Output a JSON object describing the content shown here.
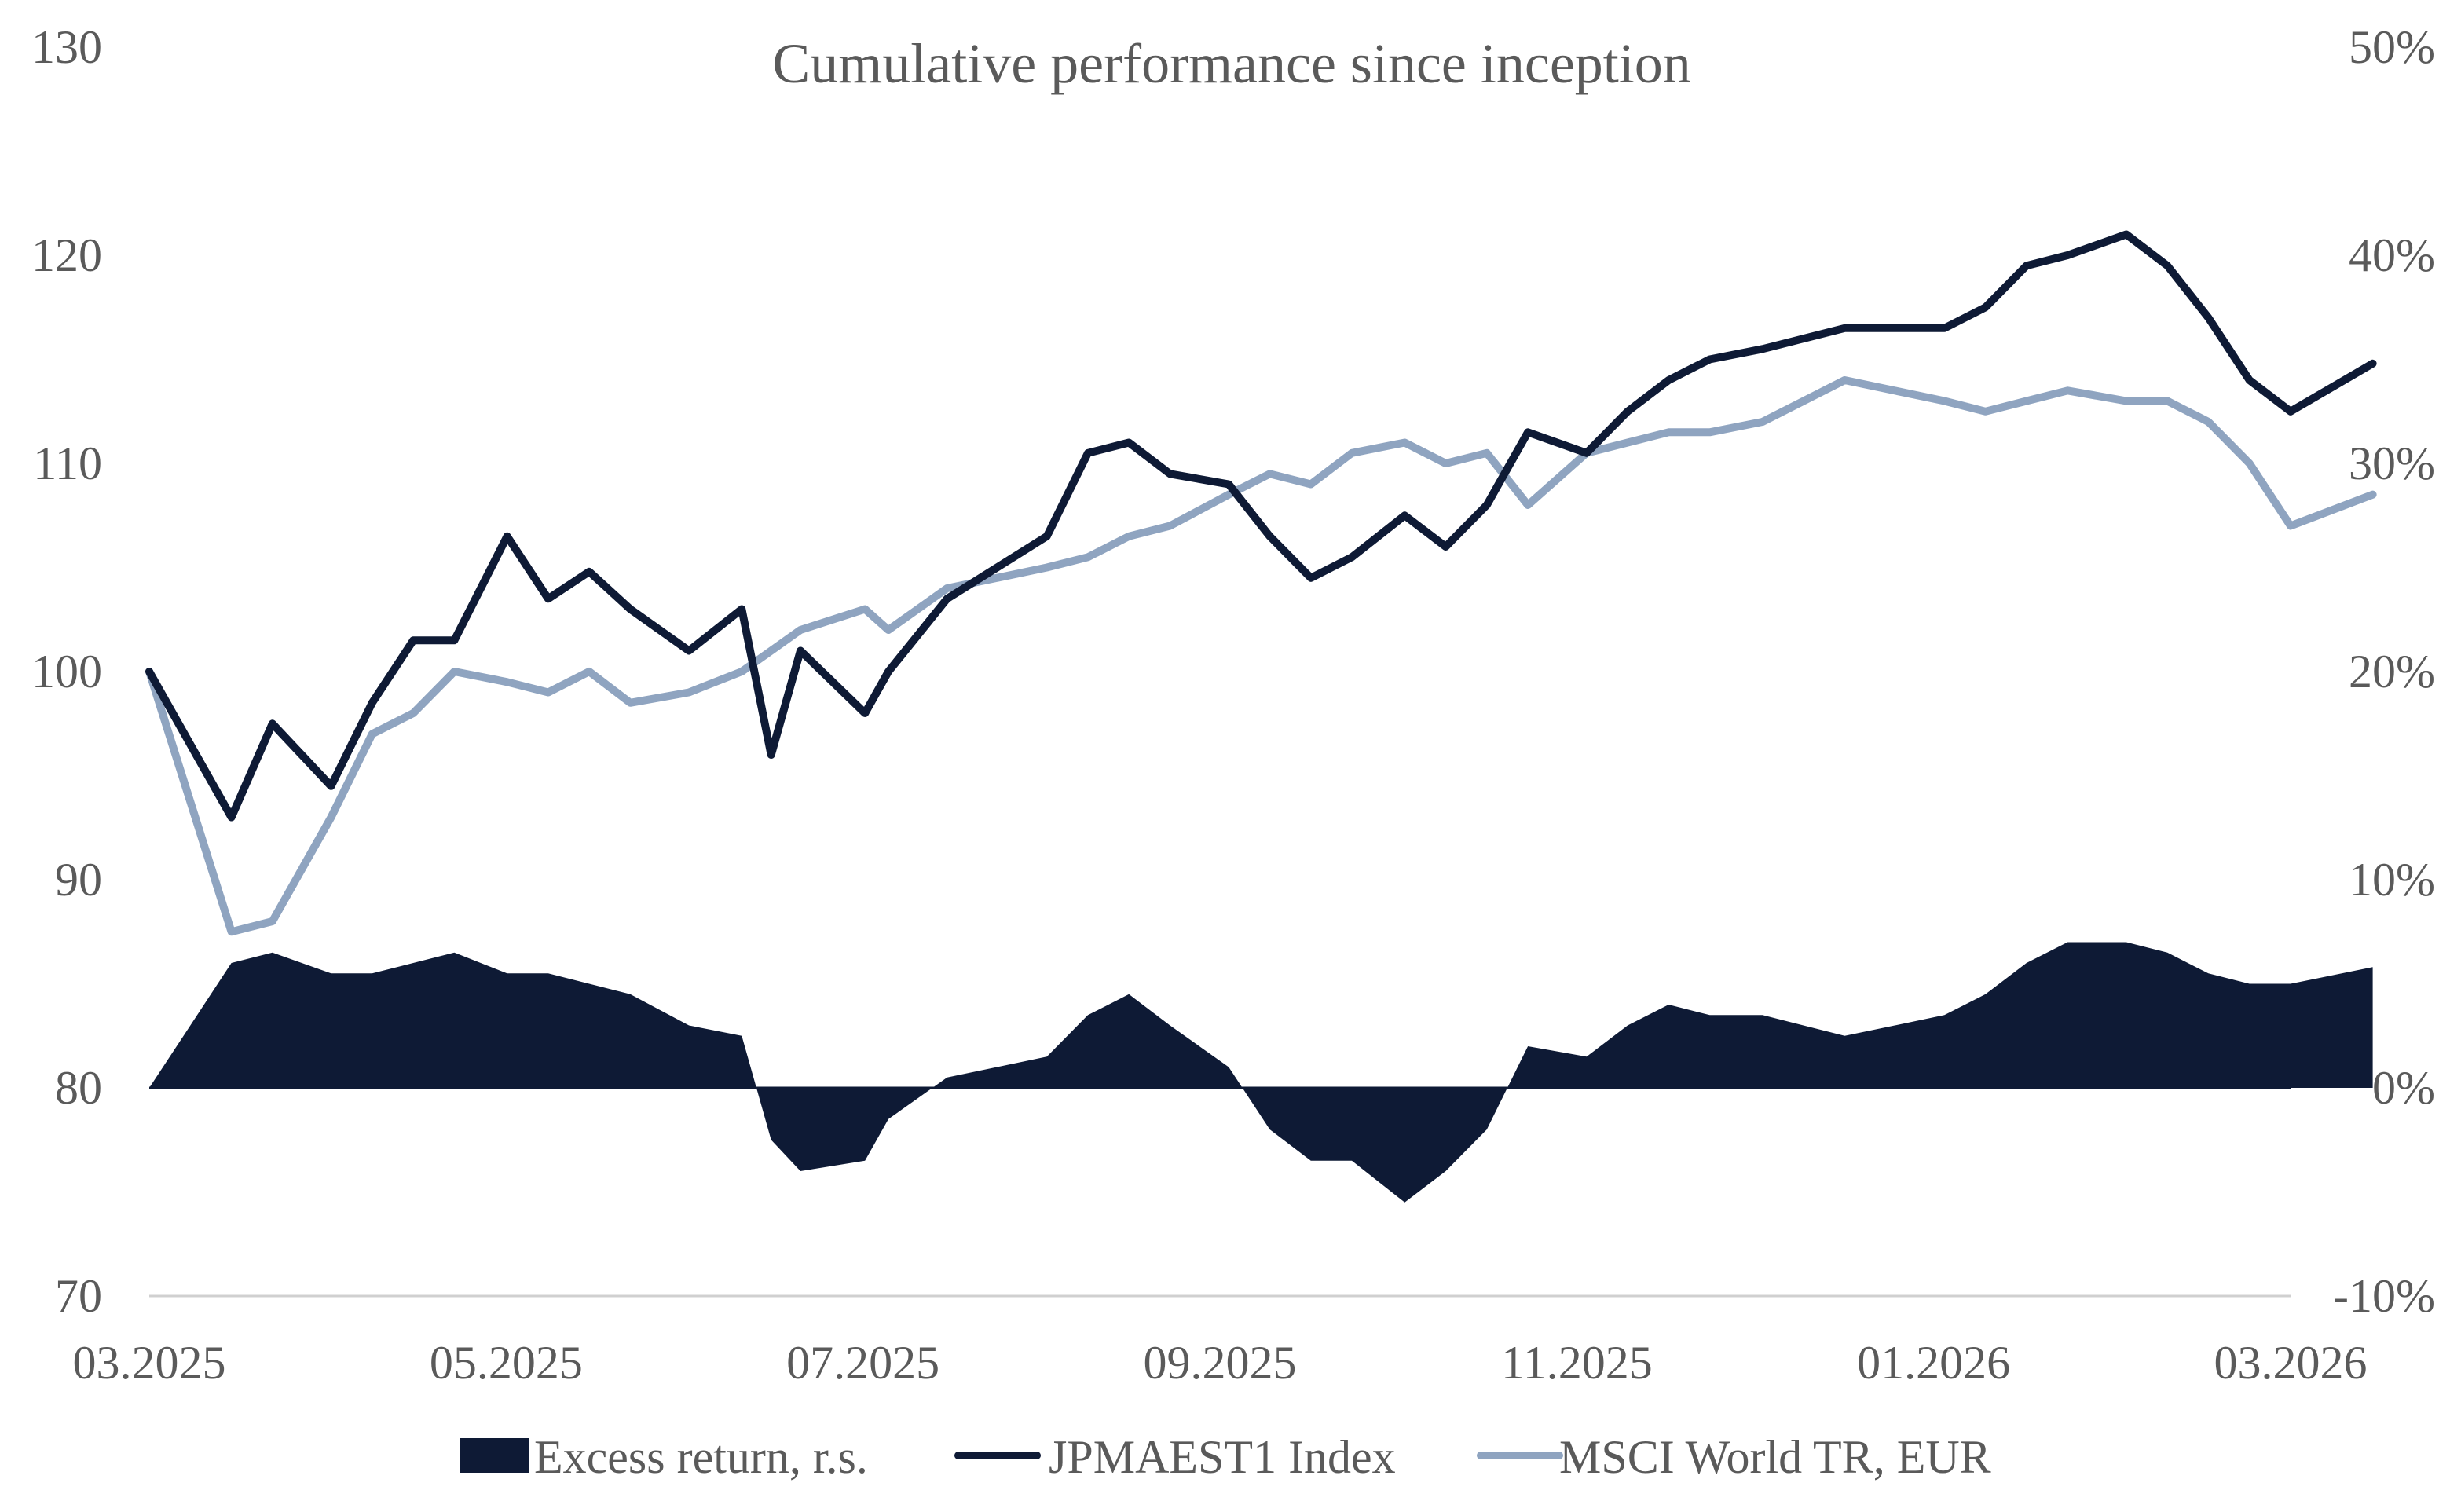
{
  "chart_data": {
    "type": "line",
    "title": "Cumulative performance since inception",
    "x_ticks": [
      "03.2025",
      "05.2025",
      "07.2025",
      "09.2025",
      "11.2025",
      "01.2026",
      "03.2026"
    ],
    "y_left": {
      "min": 70,
      "max": 130,
      "step": 10,
      "ticks": [
        "70",
        "80",
        "90",
        "100",
        "110",
        "120",
        "130"
      ]
    },
    "y_right": {
      "min": -10,
      "max": 50,
      "ticks": [
        "-10%",
        "0%",
        "10%",
        "20%",
        "30%",
        "40%",
        "50%"
      ]
    },
    "grid": false,
    "legend_position": "bottom",
    "dates": [
      "2025-03-01",
      "2025-03-15",
      "2025-03-22",
      "2025-04-01",
      "2025-04-08",
      "2025-04-15",
      "2025-04-22",
      "2025-05-01",
      "2025-05-08",
      "2025-05-15",
      "2025-05-22",
      "2025-06-01",
      "2025-06-10",
      "2025-06-15",
      "2025-06-20",
      "2025-07-01",
      "2025-07-05",
      "2025-07-15",
      "2025-08-01",
      "2025-08-08",
      "2025-08-15",
      "2025-08-22",
      "2025-09-01",
      "2025-09-08",
      "2025-09-15",
      "2025-09-22",
      "2025-10-01",
      "2025-10-08",
      "2025-10-15",
      "2025-10-22",
      "2025-11-01",
      "2025-11-08",
      "2025-11-15",
      "2025-11-22",
      "2025-12-01",
      "2025-12-15",
      "2026-01-01",
      "2026-01-08",
      "2026-01-15",
      "2026-01-22",
      "2026-02-01",
      "2026-02-08",
      "2026-02-15",
      "2026-02-22",
      "2026-03-01",
      "2026-03-15"
    ],
    "series": [
      {
        "name": "JPMAEST1 Index",
        "color": "#0e1a35",
        "axis": "left",
        "values": [
          100.0,
          93.0,
          97.5,
          94.5,
          98.5,
          101.5,
          101.5,
          106.5,
          103.5,
          104.8,
          103.0,
          101.0,
          103.0,
          96.0,
          101.0,
          98.0,
          100.0,
          103.5,
          106.5,
          110.5,
          111.0,
          109.5,
          109.0,
          106.5,
          104.5,
          105.5,
          107.5,
          106.0,
          108.0,
          111.5,
          110.5,
          112.5,
          114.0,
          115.0,
          115.5,
          116.5,
          116.5,
          117.5,
          119.5,
          120.0,
          121.0,
          119.5,
          117.0,
          114.0,
          112.5,
          114.8
        ]
      },
      {
        "name": "MSCI World TR, EUR",
        "color": "#8fa4c0",
        "axis": "left",
        "values": [
          100.0,
          87.5,
          88.0,
          93.0,
          97.0,
          98.0,
          100.0,
          99.5,
          99.0,
          100.0,
          98.5,
          99.0,
          100.0,
          101.0,
          102.0,
          103.0,
          102.0,
          104.0,
          105.0,
          105.5,
          106.5,
          107.0,
          108.5,
          109.5,
          109.0,
          110.5,
          111.0,
          110.0,
          110.5,
          108.0,
          110.5,
          111.0,
          111.5,
          111.5,
          112.0,
          114.0,
          113.0,
          112.5,
          113.0,
          113.5,
          113.0,
          113.0,
          112.0,
          110.0,
          107.0,
          108.5
        ]
      },
      {
        "name": "Excess return, r.s.",
        "color": "#0e1a35",
        "axis": "right",
        "type": "area",
        "values": [
          0.0,
          6.0,
          6.5,
          5.5,
          5.5,
          6.0,
          6.5,
          5.5,
          5.5,
          5.0,
          4.5,
          3.0,
          2.5,
          -2.5,
          -4.0,
          -3.5,
          -1.5,
          0.5,
          1.5,
          3.5,
          4.5,
          3.0,
          1.0,
          -2.0,
          -3.5,
          -3.5,
          -5.5,
          -4.0,
          -2.0,
          2.0,
          1.5,
          3.0,
          4.0,
          3.5,
          3.5,
          2.5,
          3.5,
          4.5,
          6.0,
          7.0,
          7.0,
          6.5,
          5.5,
          5.0,
          5.0,
          5.8
        ]
      }
    ]
  }
}
